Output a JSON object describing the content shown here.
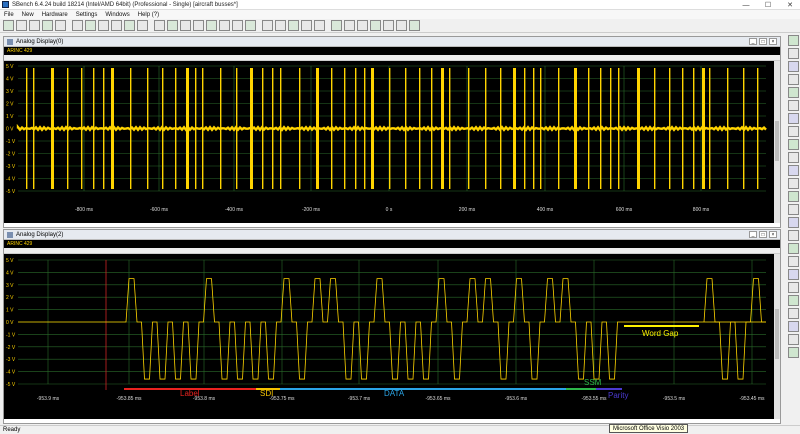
{
  "window": {
    "title": "SBench 6.4.24 build 18214 (Intel/AMD 64bit) (Professional - Single)      [aircraft busses*]",
    "minimize": "—",
    "maximize": "☐",
    "close": "✕"
  },
  "menu": [
    "File",
    "New",
    "Hardware",
    "Settings",
    "Windows",
    "Help (?)"
  ],
  "toolbar_icons": [
    "new-icon",
    "open-icon",
    "save-icon",
    "print-icon",
    "run-icon",
    "stop-icon",
    "single-icon",
    "record-icon",
    "settings-icon",
    "channel-icon",
    "trigger-icon",
    "analog-display-icon",
    "digital-display-icon",
    "fft-icon",
    "xy-icon",
    "zoom-in-icon",
    "zoom-out-icon",
    "measure-icon",
    "cursor-icon",
    "marker-icon",
    "calc-icon",
    "export-icon",
    "import-icon",
    "info-icon",
    "grid-icon",
    "text-icon",
    "arrange-icon",
    "cascade-icon",
    "tile-icon",
    "close-all-icon",
    "layout-icon"
  ],
  "panel1": {
    "title": "Analog Display(0)",
    "channel": "ARINC 429",
    "y_ticks": [
      "5 V",
      "4 V",
      "3 V",
      "2 V",
      "1 V",
      "0 V",
      "-1 V",
      "-2 V",
      "-3 V",
      "-4 V",
      "-5 V"
    ],
    "x_ticks": [
      "-800 ms",
      "-600 ms",
      "-400 ms",
      "-200 ms",
      "0 s",
      "200 ms",
      "400 ms",
      "600 ms",
      "800 ms"
    ]
  },
  "panel2": {
    "title": "Analog Display(2)",
    "channel": "ARINC 429",
    "y_ticks": [
      "5 V",
      "4 V",
      "3 V",
      "2 V",
      "1 V",
      "0 V",
      "-1 V",
      "-2 V",
      "-3 V",
      "-4 V",
      "-5 V"
    ],
    "x_ticks": [
      "-953.9 ms",
      "-953.85 ms",
      "-953.8 ms",
      "-953.75 ms",
      "-953.7 ms",
      "-953.65 ms",
      "-953.6 ms",
      "-953.55 ms",
      "-953.5 ms",
      "-953.45 ms"
    ],
    "annotations": {
      "label": "Label",
      "sdi": "SDI",
      "data": "DATA",
      "ssm": "SSM",
      "parity": "Parity",
      "word_gap": "Word Gap"
    },
    "annotation_colors": {
      "label": "#e8231f",
      "sdi": "#f5c400",
      "data": "#2aa5e6",
      "ssm": "#2db84a",
      "parity": "#4b3ad0",
      "word_gap": "#fff200"
    }
  },
  "status": "Ready",
  "tooltip": "Microsoft Office Visio 2003",
  "colors": {
    "trace": "#ffd400",
    "grid": "#2a6a2a",
    "plot_bg": "#000000"
  }
}
